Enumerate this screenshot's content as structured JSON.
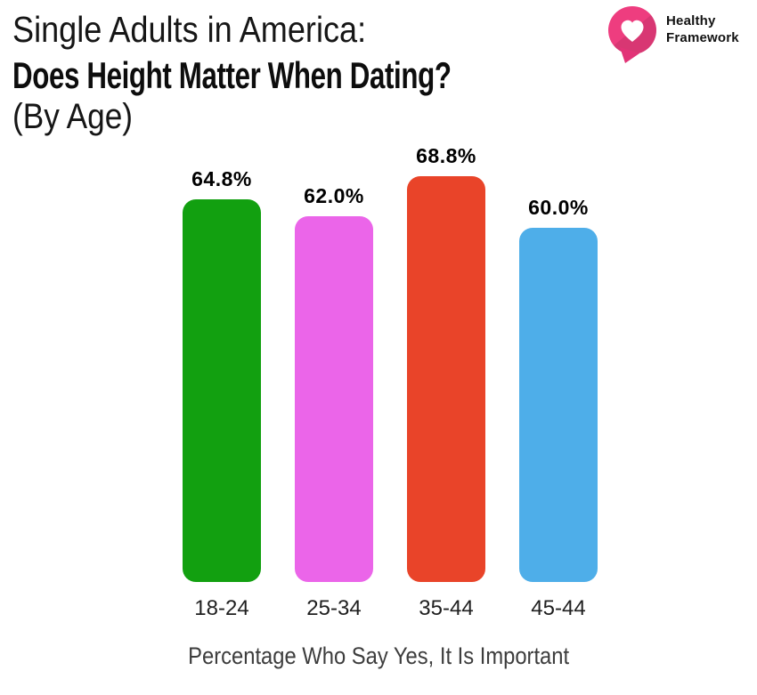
{
  "header": {
    "title_line1": "Single Adults in America:",
    "title_line2": "Does Height Matter When Dating?",
    "title_line3": "(By Age)"
  },
  "logo": {
    "name": "Healthy Framework",
    "line1": "Healthy",
    "line2": "Framework",
    "bubble_color": "#EE3D7F",
    "bubble_shade_color": "#D93371",
    "tail_color": "#E23377",
    "heart_color": "#FFFFFF",
    "text_color": "#121212"
  },
  "chart_data": {
    "type": "bar",
    "title": "Single Adults in America: Does Height Matter When Dating? (By Age)",
    "categories": [
      "18-24",
      "25-34",
      "35-44",
      "45-44"
    ],
    "values": [
      64.8,
      62.0,
      68.8,
      60.0
    ],
    "value_labels": [
      "64.8%",
      "62.0%",
      "68.8%",
      "60.0%"
    ],
    "bar_colors": [
      "#12A010",
      "#EB65E9",
      "#E94429",
      "#4EAEE9"
    ],
    "xlabel": "Percentage Who Say Yes, It Is Important",
    "ylabel": "",
    "ylim": [
      0,
      75
    ],
    "grid": false,
    "legend": false,
    "axis_lines": false
  },
  "footer": {
    "caption": "Percentage Who Say Yes, It Is Important"
  }
}
